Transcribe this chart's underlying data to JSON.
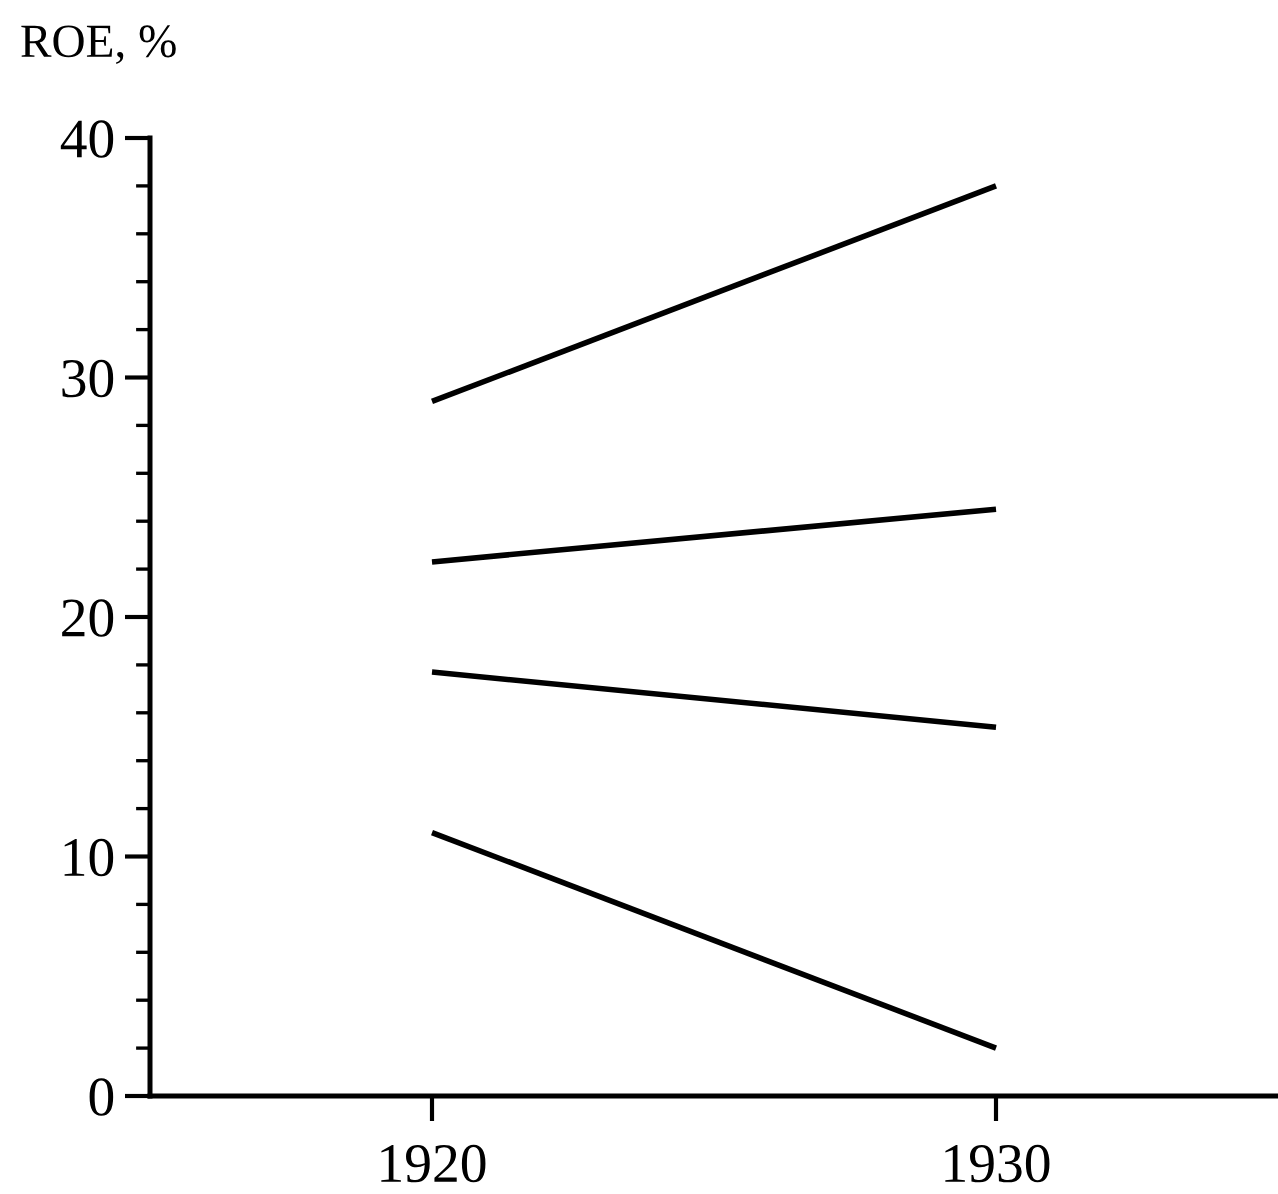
{
  "chart_data": {
    "type": "line",
    "ylabel": "ROE, %",
    "x": [
      1920,
      1930
    ],
    "series": [
      {
        "color": "#000000",
        "values": [
          29.0,
          38.0
        ]
      },
      {
        "color": "#000000",
        "values": [
          22.3,
          24.5
        ]
      },
      {
        "color": "#000000",
        "values": [
          17.7,
          15.4
        ]
      },
      {
        "color": "#000000",
        "values": [
          11.0,
          2.0
        ]
      }
    ],
    "xlim": [
      1915,
      1935
    ],
    "xticks": [
      1920,
      1930
    ],
    "ylim": [
      0,
      40
    ],
    "yticks": [
      0,
      10,
      20,
      30,
      40
    ],
    "grid": false,
    "marker": "none",
    "line_style": "solid"
  }
}
